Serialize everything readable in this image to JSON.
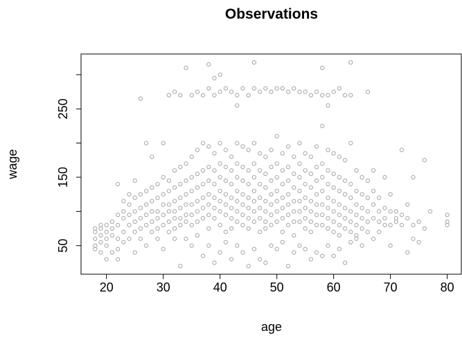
{
  "chart_data": {
    "type": "scatter",
    "title": "Observations",
    "x_label": "age",
    "y_label": "wage",
    "color": "#a9a9a9",
    "xlim": [
      15.52,
      82.48
    ],
    "ylim": [
      8.16,
      330.27
    ],
    "xticks": [
      20,
      30,
      40,
      50,
      60,
      70,
      80
    ],
    "yticks": [
      50,
      150,
      250
    ],
    "yticks_minor": [
      100,
      200,
      300
    ],
    "x": [
      18,
      18,
      18,
      18,
      18,
      19,
      19,
      19,
      19,
      19,
      20,
      20,
      20,
      20,
      20,
      21,
      21,
      21,
      21,
      22,
      22,
      22,
      22,
      22,
      22,
      23,
      23,
      23,
      23,
      23,
      24,
      24,
      24,
      24,
      24,
      25,
      25,
      25,
      25,
      25,
      25,
      26,
      26,
      26,
      26,
      26,
      26,
      27,
      27,
      27,
      27,
      27,
      27,
      28,
      28,
      28,
      28,
      28,
      28,
      29,
      29,
      29,
      29,
      29,
      29,
      30,
      30,
      30,
      30,
      30,
      30,
      30,
      31,
      31,
      31,
      31,
      31,
      31,
      31,
      32,
      32,
      32,
      32,
      32,
      32,
      32,
      32,
      33,
      33,
      33,
      33,
      33,
      33,
      33,
      33,
      34,
      34,
      34,
      34,
      34,
      34,
      34,
      34,
      35,
      35,
      35,
      35,
      35,
      35,
      35,
      35,
      36,
      36,
      36,
      36,
      36,
      36,
      36,
      36,
      37,
      37,
      37,
      37,
      37,
      37,
      37,
      37,
      38,
      38,
      38,
      38,
      38,
      38,
      38,
      38,
      38,
      38,
      39,
      39,
      39,
      39,
      39,
      39,
      39,
      39,
      39,
      40,
      40,
      40,
      40,
      40,
      40,
      40,
      40,
      40,
      40,
      41,
      41,
      41,
      41,
      41,
      41,
      41,
      41,
      41,
      42,
      42,
      42,
      42,
      42,
      42,
      42,
      42,
      42,
      43,
      43,
      43,
      43,
      43,
      43,
      43,
      43,
      43,
      43,
      44,
      44,
      44,
      44,
      44,
      44,
      44,
      44,
      44,
      45,
      45,
      45,
      45,
      45,
      45,
      45,
      45,
      45,
      46,
      46,
      46,
      46,
      46,
      46,
      46,
      46,
      46,
      46,
      47,
      47,
      47,
      47,
      47,
      47,
      47,
      47,
      47,
      48,
      48,
      48,
      48,
      48,
      48,
      48,
      48,
      48,
      49,
      49,
      49,
      49,
      49,
      49,
      49,
      49,
      49,
      50,
      50,
      50,
      50,
      50,
      50,
      50,
      50,
      50,
      51,
      51,
      51,
      51,
      51,
      51,
      51,
      51,
      51,
      52,
      52,
      52,
      52,
      52,
      52,
      52,
      52,
      52,
      53,
      53,
      53,
      53,
      53,
      53,
      53,
      53,
      53,
      54,
      54,
      54,
      54,
      54,
      54,
      54,
      54,
      54,
      55,
      55,
      55,
      55,
      55,
      55,
      55,
      55,
      55,
      56,
      56,
      56,
      56,
      56,
      56,
      56,
      56,
      56,
      57,
      57,
      57,
      57,
      57,
      57,
      57,
      57,
      57,
      58,
      58,
      58,
      58,
      58,
      58,
      58,
      58,
      58,
      58,
      59,
      59,
      59,
      59,
      59,
      59,
      59,
      59,
      59,
      59,
      60,
      60,
      60,
      60,
      60,
      60,
      60,
      60,
      60,
      61,
      61,
      61,
      61,
      61,
      61,
      61,
      61,
      61,
      62,
      62,
      62,
      62,
      62,
      62,
      62,
      62,
      63,
      63,
      63,
      63,
      63,
      63,
      63,
      63,
      63,
      64,
      64,
      64,
      64,
      64,
      64,
      64,
      65,
      65,
      65,
      65,
      65,
      65,
      66,
      66,
      66,
      66,
      66,
      66,
      67,
      67,
      67,
      67,
      67,
      68,
      68,
      68,
      68,
      69,
      69,
      69,
      69,
      70,
      70,
      70,
      70,
      71,
      71,
      71,
      72,
      72,
      72,
      73,
      73,
      73,
      74,
      74,
      74,
      75,
      75,
      76,
      76,
      77,
      80,
      80,
      80
    ],
    "y": [
      70,
      60,
      50,
      45,
      75,
      75,
      65,
      55,
      40,
      80,
      80,
      70,
      60,
      30,
      50,
      85,
      65,
      75,
      40,
      95,
      80,
      60,
      140,
      45,
      30,
      100,
      90,
      70,
      55,
      115,
      110,
      95,
      80,
      60,
      125,
      120,
      100,
      85,
      70,
      145,
      40,
      125,
      105,
      90,
      75,
      265,
      60,
      130,
      110,
      95,
      80,
      200,
      50,
      135,
      115,
      100,
      85,
      70,
      180,
      140,
      120,
      100,
      90,
      75,
      60,
      150,
      125,
      110,
      95,
      80,
      200,
      45,
      145,
      130,
      110,
      100,
      85,
      70,
      270,
      160,
      135,
      115,
      100,
      90,
      75,
      275,
      60,
      165,
      140,
      120,
      105,
      90,
      80,
      270,
      20,
      170,
      145,
      125,
      110,
      95,
      85,
      310,
      60,
      180,
      150,
      130,
      110,
      95,
      80,
      270,
      50,
      190,
      155,
      135,
      115,
      100,
      85,
      275,
      65,
      200,
      160,
      140,
      120,
      105,
      90,
      270,
      35,
      195,
      165,
      145,
      125,
      110,
      95,
      75,
      315,
      280,
      50,
      185,
      160,
      140,
      120,
      105,
      90,
      270,
      295,
      25,
      200,
      170,
      150,
      130,
      115,
      100,
      80,
      300,
      275,
      40,
      190,
      165,
      145,
      125,
      110,
      95,
      70,
      280,
      55,
      180,
      160,
      140,
      120,
      105,
      90,
      75,
      275,
      30,
      200,
      170,
      150,
      130,
      115,
      100,
      85,
      255,
      270,
      50,
      195,
      165,
      145,
      125,
      110,
      95,
      80,
      280,
      40,
      190,
      160,
      140,
      120,
      105,
      90,
      75,
      270,
      20,
      200,
      170,
      150,
      130,
      115,
      100,
      85,
      318,
      280,
      45,
      185,
      160,
      140,
      120,
      105,
      90,
      70,
      275,
      30,
      180,
      155,
      135,
      115,
      100,
      85,
      75,
      280,
      25,
      190,
      165,
      145,
      125,
      110,
      95,
      80,
      275,
      50,
      210,
      170,
      150,
      130,
      115,
      100,
      85,
      280,
      45,
      185,
      160,
      140,
      120,
      105,
      90,
      70,
      280,
      55,
      195,
      165,
      145,
      125,
      110,
      95,
      80,
      275,
      20,
      180,
      155,
      135,
      115,
      100,
      85,
      65,
      280,
      40,
      200,
      170,
      150,
      130,
      115,
      100,
      85,
      275,
      50,
      185,
      160,
      140,
      120,
      105,
      90,
      75,
      275,
      45,
      180,
      155,
      135,
      115,
      100,
      85,
      70,
      270,
      30,
      195,
      165,
      145,
      125,
      110,
      95,
      80,
      275,
      40,
      225,
      170,
      150,
      130,
      110,
      95,
      80,
      310,
      270,
      35,
      190,
      160,
      140,
      120,
      105,
      90,
      75,
      255,
      270,
      50,
      185,
      155,
      135,
      115,
      100,
      85,
      70,
      275,
      35,
      180,
      150,
      130,
      110,
      95,
      80,
      65,
      280,
      45,
      175,
      145,
      125,
      105,
      90,
      75,
      270,
      25,
      200,
      140,
      120,
      100,
      85,
      70,
      318,
      270,
      55,
      160,
      130,
      110,
      95,
      80,
      65,
      60,
      150,
      125,
      105,
      90,
      75,
      50,
      145,
      120,
      100,
      85,
      70,
      275,
      160,
      130,
      110,
      90,
      60,
      120,
      100,
      85,
      70,
      150,
      105,
      90,
      80,
      125,
      100,
      80,
      50,
      100,
      90,
      85,
      190,
      95,
      80,
      110,
      90,
      40,
      150,
      80,
      60,
      85,
      55,
      175,
      75,
      100,
      95,
      85,
      80
    ]
  }
}
